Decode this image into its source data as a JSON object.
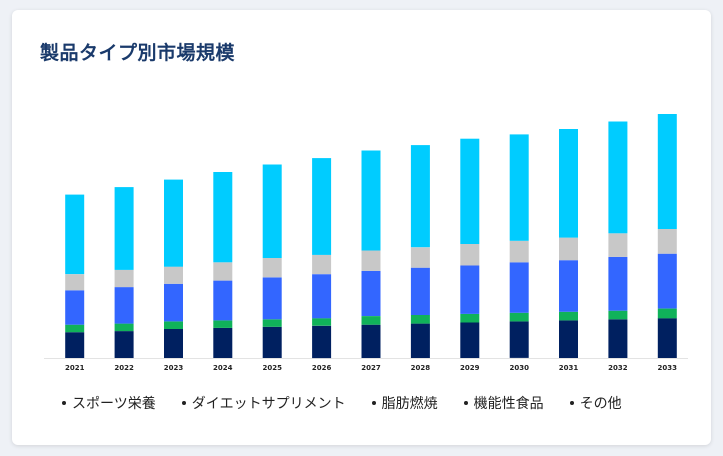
{
  "card": {
    "title": "製品タイプ別市場規模"
  },
  "chart_data": {
    "type": "bar",
    "stacked": true,
    "categories": [
      "2021",
      "2022",
      "2023",
      "2024",
      "2025",
      "2026",
      "2027",
      "2028",
      "2029",
      "2030",
      "2031",
      "2032",
      "2033"
    ],
    "series": [
      {
        "name": "その他",
        "color": "#002060",
        "values": [
          24,
          25,
          27,
          28,
          29,
          30,
          31,
          32,
          33,
          34,
          35,
          36,
          37
        ]
      },
      {
        "name": "機能性食品",
        "color": "#10b25a",
        "values": [
          7,
          7,
          7,
          7,
          7,
          7,
          8,
          8,
          8,
          8,
          8,
          8,
          9
        ]
      },
      {
        "name": "脂肪燃焼",
        "color": "#3366ff",
        "values": [
          32,
          34,
          35,
          37,
          39,
          41,
          42,
          44,
          45,
          47,
          48,
          50,
          51
        ]
      },
      {
        "name": "ダイエットサプリメント",
        "color": "#c8c8c8",
        "values": [
          15,
          16,
          16,
          17,
          18,
          18,
          19,
          19,
          20,
          20,
          21,
          22,
          23
        ]
      },
      {
        "name": "スポーツ栄養",
        "color": "#00ccff",
        "values": [
          74,
          77,
          81,
          84,
          87,
          90,
          93,
          95,
          98,
          99,
          101,
          104,
          107
        ]
      }
    ],
    "ylim": [
      0,
      240
    ],
    "legend_position": "bottom",
    "grid": false
  },
  "legend": [
    "スポーツ栄養",
    "ダイエットサプリメント",
    "脂肪燃焼",
    "機能性食品",
    "その他"
  ]
}
